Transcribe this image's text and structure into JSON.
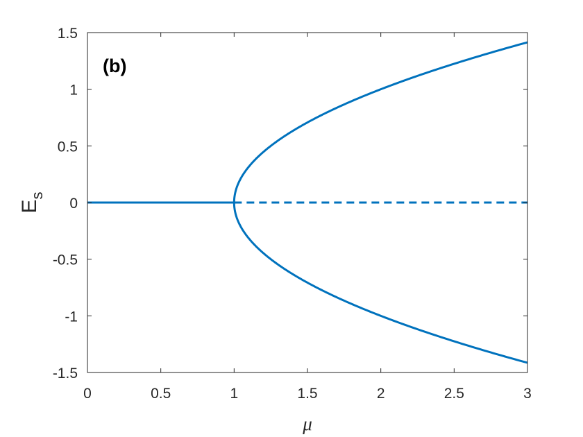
{
  "chart_data": {
    "type": "line",
    "panel_label": "(b)",
    "xlabel": "μ",
    "ylabel": {
      "main": "E",
      "subscript": "s"
    },
    "xlim": [
      0,
      3
    ],
    "ylim": [
      -1.5,
      1.5
    ],
    "xticks": [
      "0",
      "0.5",
      "1",
      "1.5",
      "2",
      "2.5",
      "3"
    ],
    "yticks": [
      "1.5",
      "1",
      "0.5",
      "0",
      "-0.5",
      "-1",
      "-1.5"
    ],
    "xtick_values": [
      0,
      0.5,
      1,
      1.5,
      2,
      2.5,
      3
    ],
    "ytick_values": [
      1.5,
      1,
      0.5,
      0,
      -0.5,
      -1,
      -1.5
    ],
    "grid": false,
    "color": "#0072BD",
    "series": [
      {
        "style": "solid",
        "description_function": "zero",
        "x_range": [
          0,
          1
        ]
      },
      {
        "style": "dashed",
        "description_function": "zero",
        "x_range": [
          1,
          3
        ]
      },
      {
        "style": "solid",
        "description_function": "sqrt(mu-1)",
        "x_range": [
          1,
          3
        ]
      },
      {
        "style": "solid",
        "description_function": "-sqrt(mu-1)",
        "x_range": [
          1,
          3
        ]
      }
    ]
  }
}
